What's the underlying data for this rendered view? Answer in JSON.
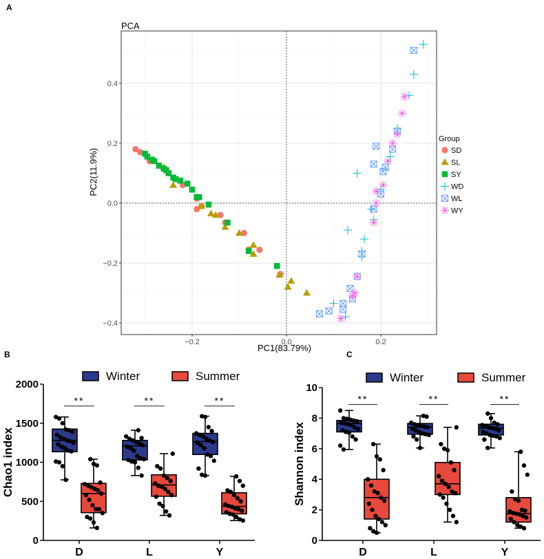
{
  "chart_data": [
    {
      "type": "scatter",
      "panel_label": "A",
      "title": "PCA",
      "xlabel": "PC1(83.79%)",
      "ylabel": "PC2(11.9%)",
      "xlim": [
        -0.35,
        0.32
      ],
      "ylim": [
        -0.44,
        0.56
      ],
      "xticks": [
        -0.2,
        0.0,
        0.2
      ],
      "xtick_labels": [
        "−0.2",
        "0.0",
        "0.2"
      ],
      "yticks": [
        -0.4,
        -0.2,
        0.0,
        0.2,
        0.4
      ],
      "ytick_labels": [
        "−0.4",
        "−0.2",
        "0.0",
        "0.2",
        "0.4"
      ],
      "grid": true,
      "reference_lines": {
        "x": 0,
        "y": 0
      },
      "legend": {
        "title": "Group",
        "placement": "right"
      },
      "series": [
        {
          "name": "SD",
          "marker": "circle",
          "color": "#F8766D",
          "points": [
            [
              -0.32,
              0.18
            ],
            [
              -0.31,
              0.17
            ],
            [
              -0.29,
              0.14
            ],
            [
              -0.27,
              0.125
            ],
            [
              -0.25,
              0.1
            ],
            [
              -0.22,
              0.06
            ],
            [
              -0.19,
              0.015
            ],
            [
              -0.19,
              -0.02
            ],
            [
              -0.18,
              -0.01
            ],
            [
              -0.14,
              -0.04
            ],
            [
              -0.13,
              -0.065
            ],
            [
              -0.09,
              -0.1
            ],
            [
              -0.08,
              -0.155
            ],
            [
              -0.057,
              -0.156
            ],
            [
              -0.013,
              -0.237
            ]
          ]
        },
        {
          "name": "SL",
          "marker": "triangle",
          "color": "#B79F00",
          "points": [
            [
              -0.26,
              0.12
            ],
            [
              -0.24,
              0.06
            ],
            [
              -0.19,
              0.02
            ],
            [
              -0.18,
              -0.01
            ],
            [
              -0.16,
              -0.035
            ],
            [
              -0.15,
              -0.04
            ],
            [
              -0.13,
              -0.08
            ],
            [
              -0.1,
              -0.1
            ],
            [
              -0.07,
              -0.14
            ],
            [
              -0.07,
              -0.17
            ],
            [
              -0.015,
              -0.24
            ],
            [
              0.01,
              -0.26
            ],
            [
              0.003,
              -0.28
            ],
            [
              0.043,
              -0.3
            ]
          ]
        },
        {
          "name": "SY",
          "marker": "square",
          "color": "#00BA38",
          "points": [
            [
              -0.3,
              0.165
            ],
            [
              -0.295,
              0.155
            ],
            [
              -0.285,
              0.145
            ],
            [
              -0.28,
              0.14
            ],
            [
              -0.27,
              0.125
            ],
            [
              -0.26,
              0.115
            ],
            [
              -0.255,
              0.11
            ],
            [
              -0.25,
              0.1
            ],
            [
              -0.24,
              0.085
            ],
            [
              -0.235,
              0.08
            ],
            [
              -0.225,
              0.075
            ],
            [
              -0.21,
              0.065
            ],
            [
              -0.2,
              0.045
            ],
            [
              -0.19,
              0.02
            ],
            [
              -0.185,
              0.02
            ],
            [
              -0.165,
              -0.005
            ],
            [
              -0.125,
              -0.065
            ],
            [
              -0.08,
              -0.16
            ],
            [
              -0.02,
              -0.21
            ]
          ]
        },
        {
          "name": "WD",
          "marker": "plus",
          "color": "#00BFC4",
          "points": [
            [
              0.29,
              0.53
            ],
            [
              0.27,
              0.43
            ],
            [
              0.26,
              0.36
            ],
            [
              0.235,
              0.25
            ],
            [
              0.22,
              0.155
            ],
            [
              0.15,
              0.1
            ],
            [
              0.2,
              0.045
            ],
            [
              0.18,
              -0.02
            ],
            [
              0.185,
              -0.055
            ],
            [
              0.13,
              -0.09
            ],
            [
              0.165,
              -0.12
            ],
            [
              0.16,
              -0.16
            ],
            [
              0.16,
              -0.18
            ],
            [
              0.1,
              -0.335
            ],
            [
              0.125,
              -0.38
            ]
          ]
        },
        {
          "name": "WL",
          "marker": "boxx",
          "color": "#619CFF",
          "points": [
            [
              0.27,
              0.51
            ],
            [
              0.235,
              0.24
            ],
            [
              0.225,
              0.18
            ],
            [
              0.19,
              0.19
            ],
            [
              0.21,
              0.12
            ],
            [
              0.205,
              0.105
            ],
            [
              0.185,
              0.13
            ],
            [
              0.2,
              0.03
            ],
            [
              0.185,
              -0.02
            ],
            [
              0.16,
              -0.17
            ],
            [
              0.15,
              -0.245
            ],
            [
              0.135,
              -0.285
            ],
            [
              0.14,
              -0.32
            ],
            [
              0.12,
              -0.335
            ],
            [
              0.12,
              -0.355
            ],
            [
              0.09,
              -0.36
            ],
            [
              0.07,
              -0.37
            ]
          ]
        },
        {
          "name": "WY",
          "marker": "asterisk",
          "color": "#F564E3",
          "points": [
            [
              0.25,
              0.355
            ],
            [
              0.245,
              0.3
            ],
            [
              0.235,
              0.23
            ],
            [
              0.225,
              0.2
            ],
            [
              0.215,
              0.14
            ],
            [
              0.205,
              0.06
            ],
            [
              0.19,
              0.04
            ],
            [
              0.19,
              0.0
            ],
            [
              0.185,
              -0.065
            ],
            [
              0.15,
              -0.245
            ],
            [
              0.145,
              -0.3
            ],
            [
              0.14,
              -0.31
            ],
            [
              0.115,
              -0.385
            ]
          ]
        }
      ]
    },
    {
      "type": "box",
      "panel_label": "B",
      "ylabel": "Chao1 index",
      "ylim": [
        0,
        2000
      ],
      "yticks": [
        0,
        500,
        1000,
        1500,
        2000
      ],
      "categories": [
        "D",
        "L",
        "Y"
      ],
      "legend": {
        "placement": "top",
        "entries": [
          "Winter",
          "Summer"
        ]
      },
      "colors": {
        "Winter": "#2B3A8C",
        "Summer": "#E8493D"
      },
      "significance": {
        "label": "**",
        "level": 1720
      },
      "series": [
        {
          "name": "Winter",
          "boxes": [
            {
              "min": 775,
              "q1": 1135,
              "median": 1280,
              "q3": 1425,
              "max": 1580,
              "points": [
                1580,
                1560,
                1500,
                1420,
                1410,
                1390,
                1350,
                1320,
                1300,
                1280,
                1270,
                1250,
                1230,
                1200,
                1180,
                1150,
                1140,
                1010,
                1000,
                950,
                775
              ]
            },
            {
              "min": 830,
              "q1": 1030,
              "median": 1210,
              "q3": 1280,
              "max": 1410,
              "points": [
                1410,
                1310,
                1330,
                1300,
                1280,
                1260,
                1240,
                1220,
                1200,
                1180,
                1150,
                1080,
                1050,
                1040,
                1030,
                1010,
                1000,
                930,
                830
              ]
            },
            {
              "min": 830,
              "q1": 1100,
              "median": 1265,
              "q3": 1370,
              "max": 1590,
              "points": [
                1590,
                1580,
                1450,
                1400,
                1370,
                1350,
                1330,
                1300,
                1280,
                1260,
                1250,
                1220,
                1180,
                1100,
                1080,
                1020,
                920,
                840,
                830
              ]
            }
          ]
        },
        {
          "name": "Summer",
          "boxes": [
            {
              "min": 160,
              "q1": 355,
              "median": 600,
              "q3": 730,
              "max": 1040,
              "points": [
                1040,
                980,
                960,
                740,
                720,
                700,
                680,
                660,
                640,
                600,
                580,
                520,
                450,
                400,
                400,
                350,
                300,
                280,
                230,
                160
              ]
            },
            {
              "min": 320,
              "q1": 565,
              "median": 710,
              "q3": 840,
              "max": 1110,
              "points": [
                1110,
                950,
                920,
                830,
                800,
                760,
                730,
                700,
                690,
                660,
                620,
                580,
                560,
                470,
                440,
                370,
                320
              ]
            },
            {
              "min": 255,
              "q1": 340,
              "median": 435,
              "q3": 610,
              "max": 820,
              "points": [
                820,
                760,
                700,
                640,
                620,
                580,
                540,
                500,
                460,
                440,
                430,
                410,
                400,
                380,
                360,
                340,
                330,
                300,
                270,
                255
              ]
            }
          ]
        }
      ]
    },
    {
      "type": "box",
      "panel_label": "C",
      "ylabel": "Shannon index",
      "ylim": [
        0,
        10
      ],
      "yticks": [
        0,
        2,
        4,
        6,
        8,
        10
      ],
      "categories": [
        "D",
        "L",
        "Y"
      ],
      "legend": {
        "placement": "top",
        "entries": [
          "Winter",
          "Summer"
        ]
      },
      "colors": {
        "Winter": "#2B3A8C",
        "Summer": "#E8493D"
      },
      "significance": {
        "label": "**",
        "level": 8.9
      },
      "series": [
        {
          "name": "Winter",
          "boxes": [
            {
              "min": 5.95,
              "q1": 7.1,
              "median": 7.65,
              "q3": 7.85,
              "max": 8.5,
              "points": [
                8.5,
                8.0,
                7.95,
                7.9,
                7.85,
                7.8,
                7.7,
                7.65,
                7.6,
                7.55,
                7.4,
                7.3,
                7.2,
                7.1,
                7.05,
                6.8,
                6.6,
                6.2,
                5.95
              ]
            },
            {
              "min": 6.05,
              "q1": 6.95,
              "median": 7.4,
              "q3": 7.65,
              "max": 8.15,
              "points": [
                8.15,
                8.1,
                7.7,
                7.6,
                7.55,
                7.5,
                7.45,
                7.4,
                7.3,
                7.2,
                7.1,
                7.0,
                6.95,
                6.9,
                6.8,
                6.6,
                6.05
              ]
            },
            {
              "min": 6.05,
              "q1": 6.9,
              "median": 7.35,
              "q3": 7.6,
              "max": 8.3,
              "points": [
                8.3,
                8.0,
                7.7,
                7.6,
                7.55,
                7.5,
                7.4,
                7.35,
                7.3,
                7.2,
                7.1,
                7.0,
                6.9,
                6.85,
                6.8,
                6.7,
                6.6,
                6.05
              ]
            }
          ]
        },
        {
          "name": "Summer",
          "boxes": [
            {
              "min": 0.5,
              "q1": 1.4,
              "median": 2.8,
              "q3": 4.0,
              "max": 6.3,
              "points": [
                6.3,
                5.5,
                5.3,
                4.6,
                4.0,
                3.6,
                3.2,
                3.1,
                2.8,
                2.6,
                2.4,
                2.0,
                1.6,
                1.4,
                1.2,
                1.0,
                0.8,
                0.6,
                0.5
              ]
            },
            {
              "min": 1.2,
              "q1": 3.0,
              "median": 3.7,
              "q3": 5.1,
              "max": 7.4,
              "points": [
                7.4,
                6.3,
                6.0,
                5.9,
                5.1,
                4.6,
                4.2,
                3.9,
                3.7,
                3.5,
                3.2,
                3.1,
                3.0,
                2.8,
                2.4,
                2.0,
                1.6,
                1.2
              ]
            },
            {
              "min": 0.8,
              "q1": 1.2,
              "median": 1.75,
              "q3": 2.8,
              "max": 5.8,
              "points": [
                5.8,
                4.9,
                4.3,
                3.2,
                2.7,
                2.6,
                2.0,
                1.95,
                1.9,
                1.8,
                1.75,
                1.7,
                1.6,
                1.5,
                1.4,
                1.2,
                1.0,
                0.9,
                0.8
              ]
            }
          ]
        }
      ]
    }
  ]
}
